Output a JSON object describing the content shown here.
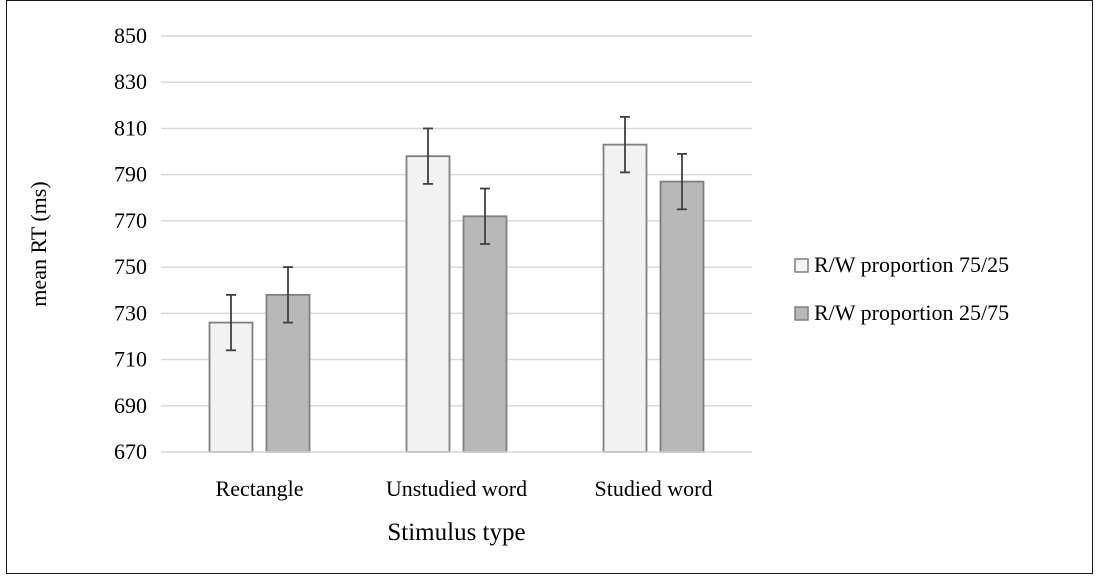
{
  "chart_data": {
    "type": "bar",
    "categories": [
      "Rectangle",
      "Unstudied word",
      "Studied word"
    ],
    "series": [
      {
        "name": "R/W proportion 75/25",
        "values": [
          726,
          798,
          803
        ],
        "errors": [
          12,
          12,
          12
        ],
        "color": "#f2f2f2"
      },
      {
        "name": "R/W proportion 25/75",
        "values": [
          738,
          772,
          787
        ],
        "errors": [
          12,
          12,
          12
        ],
        "color": "#b8b8b8"
      }
    ],
    "title": "",
    "xlabel": "Stimulus type",
    "ylabel": "mean RT (ms)",
    "ylim": [
      670,
      850
    ],
    "yticks": [
      "670",
      "690",
      "710",
      "730",
      "750",
      "770",
      "790",
      "810",
      "830",
      "850"
    ],
    "grid": true,
    "legend_position": "right",
    "bar_stroke": "#7f7f7f",
    "gridline_color": "#d9d9d9",
    "error_bar_color": "#404040"
  }
}
